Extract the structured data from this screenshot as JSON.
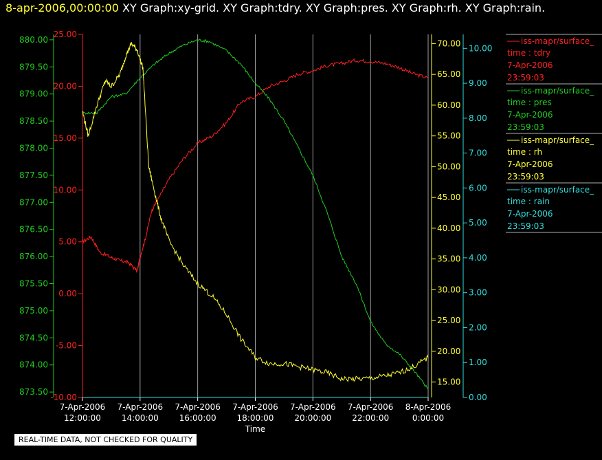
{
  "header": {
    "date": "8-apr-2006,00:00:00",
    "graphs_text": "XY Graph:xy-grid.  XY Graph:tdry.  XY Graph:pres.  XY Graph:rh.  XY Graph:rain."
  },
  "footer_note": "REAL-TIME DATA, NOT CHECKED FOR QUALITY",
  "colors": {
    "tdry": "#ff2020",
    "pres": "#22cc22",
    "rh": "#ffff33",
    "rain": "#33dddd",
    "grid": "#a0a0a0"
  },
  "legend": [
    {
      "label": "iss-mapr/surface_",
      "var": "time : tdry",
      "date": "7-Apr-2006",
      "time": "23:59:03",
      "color": "#ff2020"
    },
    {
      "label": "iss-mapr/surface_",
      "var": "time : pres",
      "date": "7-Apr-2006",
      "time": "23:59:03",
      "color": "#22cc22"
    },
    {
      "label": "iss-mapr/surface_",
      "var": "time : rh",
      "date": "7-Apr-2006",
      "time": "23:59:03",
      "color": "#ffff33"
    },
    {
      "label": "iss-mapr/surface_",
      "var": "time : rain",
      "date": "7-Apr-2006",
      "time": "23:59:03",
      "color": "#33dddd"
    }
  ],
  "chart_data": {
    "type": "line",
    "xlabel": "Time",
    "x_ticks": [
      {
        "date": "7-Apr-2006",
        "time": "12:00:00"
      },
      {
        "date": "7-Apr-2006",
        "time": "14:00:00"
      },
      {
        "date": "7-Apr-2006",
        "time": "16:00:00"
      },
      {
        "date": "7-Apr-2006",
        "time": "18:00:00"
      },
      {
        "date": "7-Apr-2006",
        "time": "20:00:00"
      },
      {
        "date": "7-Apr-2006",
        "time": "22:00:00"
      },
      {
        "date": "8-Apr-2006",
        "time": "0:00:00"
      }
    ],
    "x_range_hours": [
      12,
      24
    ],
    "grid_x": true,
    "axes": {
      "tdry": {
        "ticks": [
          "25.00",
          "20.00",
          "15.00",
          "10.00",
          "5.00",
          "0.00",
          "-5.00",
          "-10.00"
        ],
        "range": [
          -10,
          25
        ]
      },
      "pres": {
        "ticks": [
          "880.00",
          "879.50",
          "879.00",
          "878.50",
          "878.00",
          "877.50",
          "877.00",
          "876.50",
          "876.00",
          "875.50",
          "875.00",
          "874.50",
          "874.00",
          "873.50"
        ],
        "range": [
          873.4,
          880.1
        ]
      },
      "rh": {
        "ticks": [
          "70.00",
          "65.00",
          "60.00",
          "55.00",
          "50.00",
          "45.00",
          "40.00",
          "35.00",
          "30.00",
          "25.00",
          "20.00",
          "15.00"
        ],
        "range": [
          12.5,
          71.5
        ]
      },
      "rain": {
        "ticks": [
          "10.00",
          "9.00",
          "8.00",
          "7.00",
          "6.00",
          "5.00",
          "4.00",
          "3.00",
          "2.00",
          "1.00",
          "0.00"
        ],
        "range": [
          0,
          10.4
        ]
      }
    },
    "series": [
      {
        "name": "tdry",
        "x_hours": [
          12.0,
          12.3,
          12.6,
          13.0,
          13.3,
          13.6,
          13.9,
          14.0,
          14.2,
          14.4,
          14.6,
          15.0,
          15.5,
          16.0,
          16.5,
          17.0,
          17.5,
          18.0,
          18.5,
          19.0,
          19.5,
          20.0,
          20.5,
          21.0,
          21.5,
          22.0,
          22.5,
          23.0,
          23.5,
          24.0
        ],
        "values": [
          5.0,
          5.5,
          4.0,
          3.5,
          3.2,
          3.0,
          2.2,
          3.5,
          5.5,
          8.0,
          9.0,
          11.0,
          13.0,
          14.5,
          15.2,
          16.5,
          18.5,
          19.0,
          20.0,
          20.5,
          21.2,
          21.5,
          22.0,
          22.2,
          22.5,
          22.4,
          22.2,
          21.8,
          21.2,
          20.8
        ]
      },
      {
        "name": "pres",
        "x_hours": [
          12.0,
          12.5,
          13.0,
          13.5,
          14.0,
          14.5,
          15.0,
          15.5,
          16.0,
          16.4,
          17.0,
          17.5,
          18.0,
          18.5,
          19.0,
          19.5,
          20.0,
          20.5,
          21.0,
          21.5,
          22.0,
          22.5,
          23.0,
          23.5,
          24.0
        ],
        "values": [
          878.65,
          878.65,
          878.95,
          879.0,
          879.3,
          879.55,
          879.75,
          879.9,
          880.0,
          879.97,
          879.8,
          879.55,
          879.2,
          878.9,
          878.5,
          878.0,
          877.5,
          876.8,
          876.0,
          875.5,
          874.8,
          874.4,
          874.2,
          873.9,
          873.55
        ]
      },
      {
        "name": "rh",
        "x_hours": [
          12.0,
          12.2,
          12.5,
          12.8,
          13.0,
          13.3,
          13.5,
          13.7,
          13.9,
          14.1,
          14.3,
          14.5,
          14.7,
          15.0,
          15.5,
          16.0,
          16.5,
          17.0,
          17.5,
          18.0,
          18.5,
          19.0,
          19.5,
          20.0,
          20.5,
          21.0,
          21.5,
          22.0,
          22.5,
          23.0,
          23.5,
          24.0
        ],
        "values": [
          59,
          55,
          60,
          64,
          63,
          65,
          68,
          70,
          69,
          66,
          50,
          46,
          42,
          38,
          34,
          31,
          29,
          26,
          22,
          19,
          18,
          18,
          17.5,
          17,
          16.5,
          15.5,
          15.5,
          15.6,
          16,
          16.5,
          17.5,
          19
        ]
      },
      {
        "name": "rain",
        "x_hours": [
          12.0,
          24.0
        ],
        "values": [
          0.0,
          0.0
        ]
      }
    ]
  }
}
